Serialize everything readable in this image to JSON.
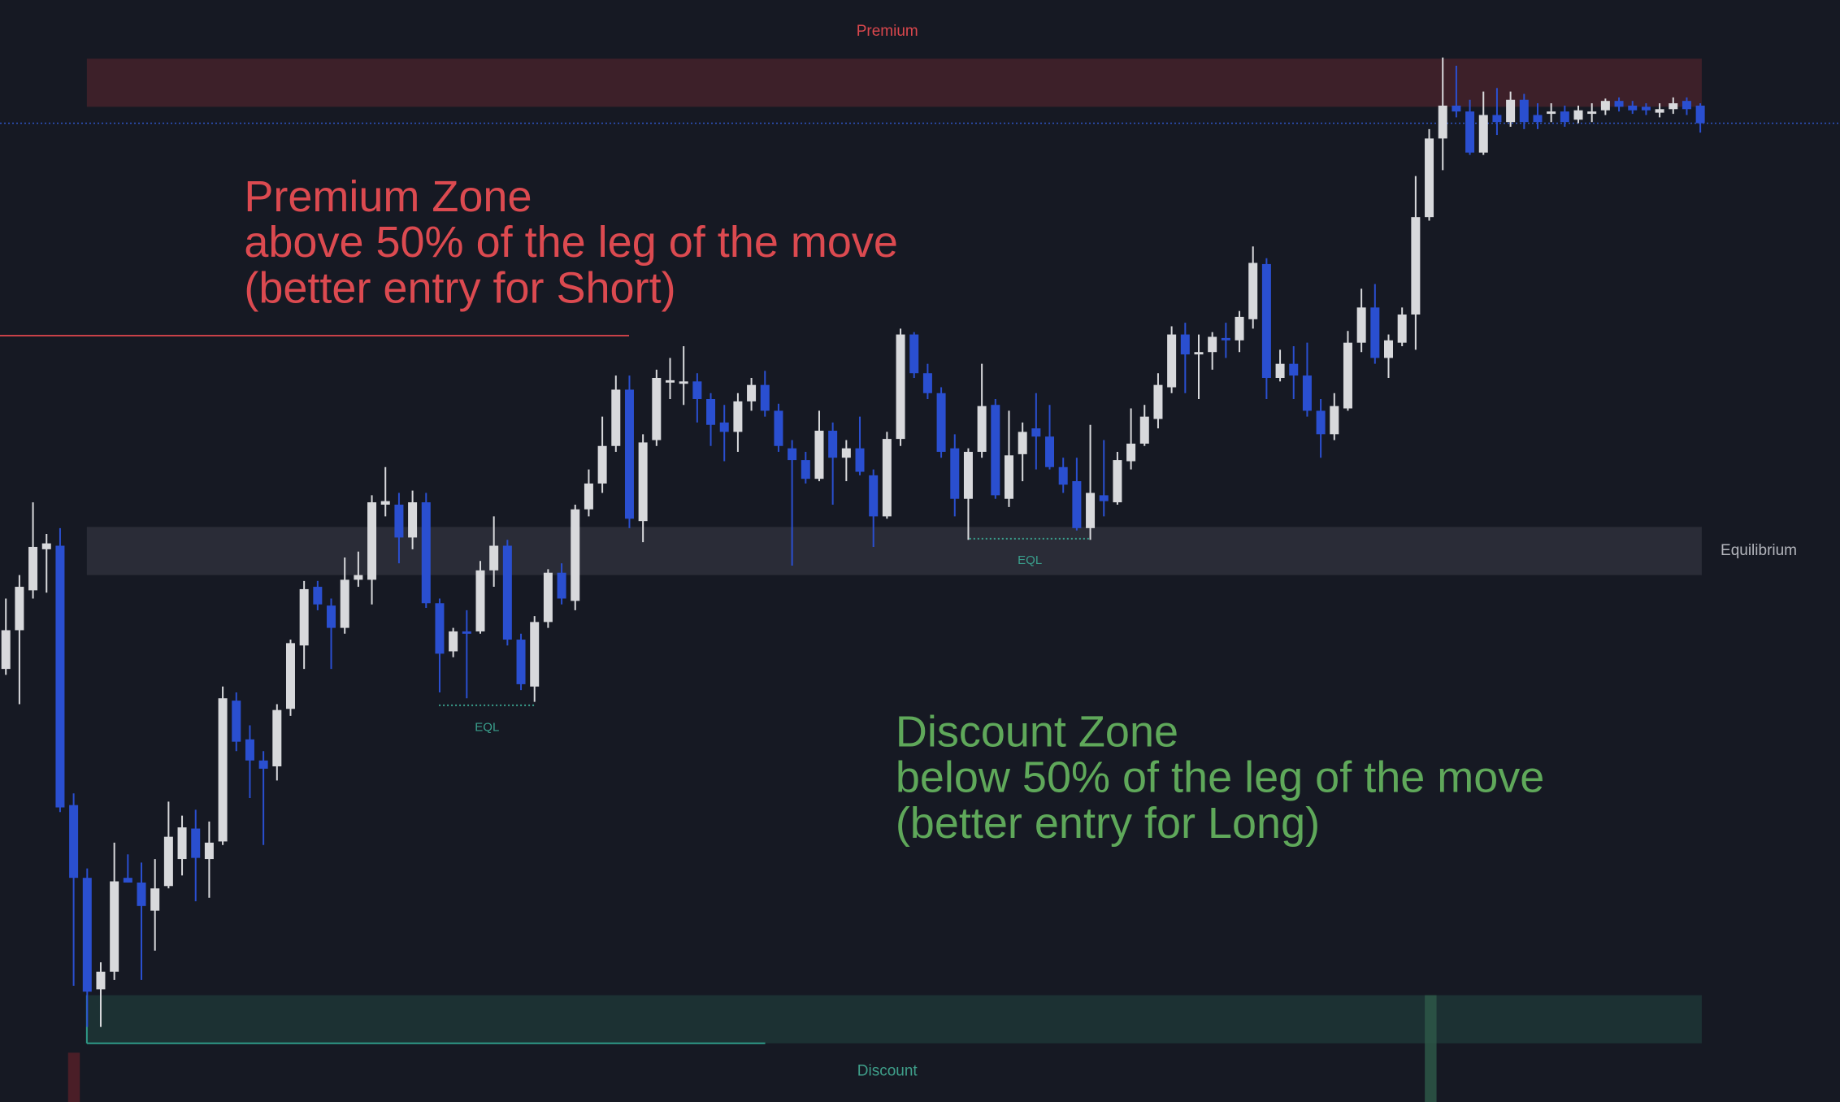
{
  "chart_data": {
    "type": "candlestick",
    "up_color": "#d8d9dc",
    "down_color": "#2a4fd0",
    "ylim": [
      61,
      1000
    ],
    "open": [
      430,
      463,
      497,
      532,
      535,
      314,
      252,
      157,
      172,
      252,
      248,
      224,
      245,
      268,
      294,
      268,
      283,
      403,
      370,
      352,
      347,
      396,
      450,
      500,
      484,
      465,
      506,
      506,
      570,
      570,
      542,
      572,
      486,
      445,
      462,
      462,
      514,
      535,
      455,
      415,
      470,
      512,
      488,
      566,
      588,
      620,
      668,
      556,
      625,
      674,
      673,
      675,
      660,
      640,
      632,
      658,
      672,
      650,
      618,
      608,
      592,
      633,
      610,
      618,
      595,
      560,
      626,
      715,
      682,
      665,
      618,
      575,
      615,
      655,
      575,
      613,
      635,
      628,
      602,
      590,
      550,
      578,
      572,
      607,
      622,
      643,
      670,
      715,
      698,
      700,
      712,
      710,
      728,
      775,
      678,
      690,
      680,
      650,
      630,
      652,
      708,
      738,
      695,
      708,
      732,
      815,
      882,
      910,
      905,
      870,
      902,
      896,
      915,
      902,
      903,
      905,
      898,
      903,
      906,
      914,
      910,
      909,
      904,
      907,
      914,
      910
    ],
    "high": [
      490,
      510,
      572,
      545,
      550,
      324,
      260,
      180,
      282,
      272,
      265,
      268,
      317,
      305,
      310,
      300,
      415,
      410,
      382,
      360,
      400,
      455,
      505,
      505,
      490,
      525,
      530,
      578,
      602,
      580,
      582,
      580,
      490,
      465,
      480,
      522,
      560,
      540,
      460,
      475,
      515,
      520,
      570,
      600,
      645,
      680,
      680,
      630,
      685,
      695,
      705,
      682,
      665,
      655,
      665,
      678,
      684,
      656,
      625,
      615,
      650,
      640,
      625,
      645,
      600,
      632,
      720,
      717,
      690,
      670,
      630,
      618,
      690,
      660,
      650,
      640,
      665,
      655,
      610,
      610,
      638,
      625,
      615,
      652,
      655,
      682,
      722,
      725,
      715,
      717,
      725,
      735,
      790,
      780,
      702,
      705,
      708,
      660,
      665,
      718,
      754,
      758,
      715,
      738,
      850,
      890,
      951,
      944,
      915,
      922,
      925,
      922,
      920,
      912,
      912,
      910,
      910,
      912,
      916,
      917,
      914,
      912,
      912,
      917,
      917,
      912
    ],
    "low": [
      425,
      400,
      490,
      495,
      308,
      160,
      125,
      125,
      165,
      248,
      165,
      190,
      243,
      254,
      232,
      235,
      280,
      360,
      320,
      280,
      335,
      390,
      430,
      480,
      430,
      460,
      500,
      485,
      560,
      520,
      532,
      482,
      410,
      440,
      405,
      460,
      500,
      450,
      412,
      402,
      465,
      485,
      480,
      560,
      580,
      615,
      550,
      538,
      620,
      660,
      655,
      640,
      620,
      607,
      615,
      650,
      645,
      615,
      518,
      588,
      590,
      570,
      590,
      595,
      534,
      558,
      620,
      678,
      660,
      610,
      560,
      540,
      610,
      575,
      568,
      590,
      600,
      600,
      580,
      548,
      540,
      560,
      570,
      600,
      620,
      635,
      665,
      665,
      660,
      685,
      695,
      700,
      720,
      660,
      675,
      660,
      645,
      610,
      625,
      650,
      700,
      690,
      678,
      705,
      702,
      812,
      855,
      900,
      868,
      868,
      885,
      892,
      890,
      890,
      896,
      892,
      895,
      896,
      902,
      905,
      903,
      902,
      900,
      903,
      902,
      887
    ],
    "close": [
      463,
      500,
      534,
      537,
      312,
      252,
      155,
      172,
      249,
      248,
      228,
      243,
      287,
      295,
      269,
      282,
      405,
      368,
      352,
      345,
      395,
      452,
      498,
      485,
      465,
      506,
      510,
      572,
      573,
      542,
      572,
      486,
      443,
      462,
      460,
      514,
      535,
      455,
      417,
      470,
      512,
      490,
      566,
      588,
      620,
      668,
      558,
      623,
      678,
      676,
      675,
      660,
      638,
      632,
      658,
      672,
      650,
      620,
      608,
      592,
      633,
      610,
      618,
      598,
      560,
      626,
      715,
      682,
      665,
      615,
      575,
      615,
      654,
      578,
      612,
      632,
      628,
      602,
      587,
      550,
      580,
      573,
      608,
      622,
      645,
      672,
      715,
      698,
      700,
      713,
      710,
      730,
      776,
      678,
      690,
      680,
      650,
      630,
      654,
      708,
      738,
      695,
      710,
      732,
      815,
      882,
      910,
      905,
      870,
      902,
      896,
      915,
      896,
      896,
      905,
      896,
      906,
      905,
      914,
      909,
      906,
      906,
      907,
      912,
      907,
      895
    ],
    "zones": [
      {
        "name": "Premium",
        "range": [
          909,
          950
        ],
        "color": "#3d2029"
      },
      {
        "name": "Equilibrium",
        "range": [
          510,
          551
        ],
        "color": "#2a2c37"
      },
      {
        "name": "Discount",
        "range": [
          111,
          152
        ],
        "color": "#1c3133"
      }
    ],
    "equal_lows": [
      {
        "label": "EQL",
        "level": 399
      },
      {
        "label": "EQL",
        "level": 541
      }
    ],
    "premium_note": {
      "color": "#dc4a50",
      "lines": [
        "Premium Zone",
        "above 50% of the leg of the move",
        "(better entry for Short)"
      ]
    },
    "discount_note": {
      "color": "#5fa85a",
      "lines": [
        "Discount Zone",
        "below 50% of the leg of the move",
        "(better entry for Long)"
      ]
    }
  }
}
